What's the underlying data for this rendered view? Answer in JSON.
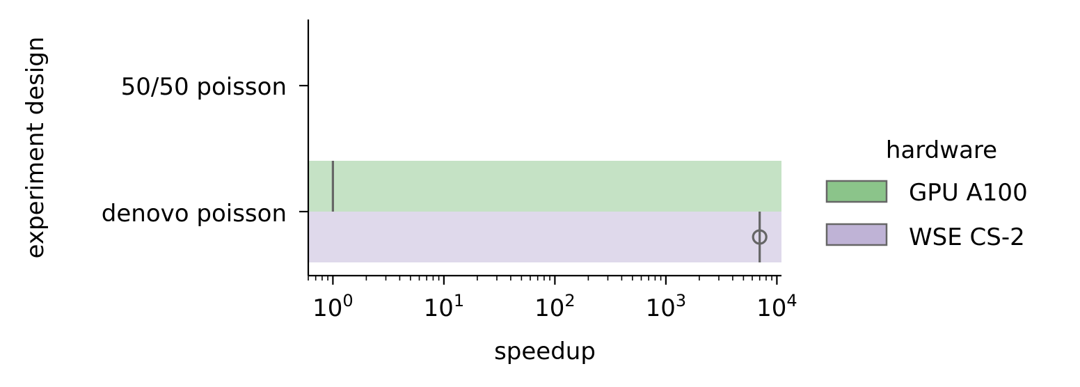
{
  "chart_data": {
    "type": "bar",
    "orientation": "horizontal",
    "xscale": "log",
    "xlim": [
      0.6,
      11000
    ],
    "xlabel": "speedup",
    "ylabel": "experiment design",
    "xticks": [
      {
        "value": 1,
        "base": "10",
        "exp": "0"
      },
      {
        "value": 10,
        "base": "10",
        "exp": "1"
      },
      {
        "value": 100,
        "base": "10",
        "exp": "2"
      },
      {
        "value": 1000,
        "base": "10",
        "exp": "3"
      },
      {
        "value": 10000,
        "base": "10",
        "exp": "4"
      }
    ],
    "categories": [
      "50/50 poisson",
      "denovo poisson"
    ],
    "series": [
      {
        "name": "GPU A100",
        "color": "#8bc48a",
        "values": [
          null,
          1
        ]
      },
      {
        "name": "WSE CS-2",
        "color": "#bfb3d6",
        "values": [
          null,
          7000
        ]
      }
    ],
    "outliers": [
      {
        "category": "denovo poisson",
        "series": "WSE CS-2",
        "value": 7000
      }
    ],
    "legend": {
      "title": "hardware",
      "placement": "right"
    },
    "grid": false
  }
}
